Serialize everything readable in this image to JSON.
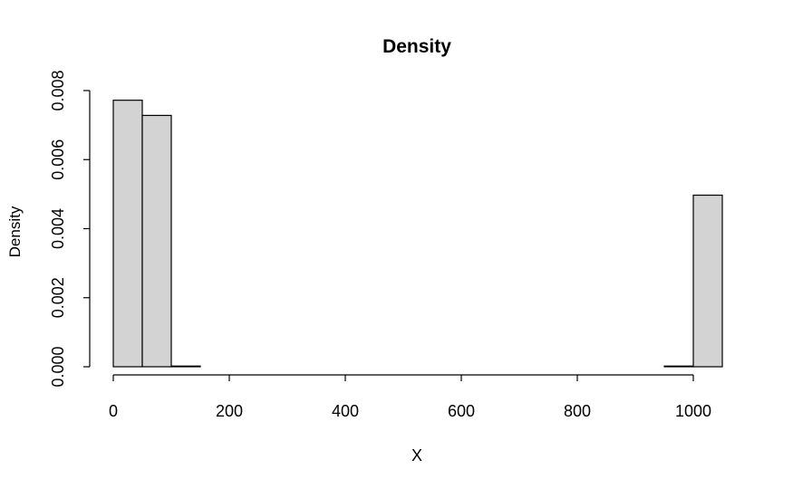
{
  "chart_data": {
    "type": "bar",
    "title": "Density",
    "xlabel": "X",
    "ylabel": "Density",
    "bin_edges": [
      0,
      50,
      100,
      150,
      200,
      250,
      300,
      350,
      400,
      450,
      500,
      550,
      600,
      650,
      700,
      750,
      800,
      850,
      900,
      950,
      1000,
      1050
    ],
    "values": [
      0.00772,
      0.00728,
      2e-05,
      0,
      0,
      0,
      0,
      0,
      0,
      0,
      0,
      0,
      0,
      0,
      0,
      0,
      0,
      0,
      0,
      2e-05,
      0.00497
    ],
    "xticks": [
      0,
      200,
      400,
      600,
      800,
      1000
    ],
    "xtick_labels": [
      "0",
      "200",
      "400",
      "600",
      "800",
      "1000"
    ],
    "yticks": [
      0,
      0.002,
      0.004,
      0.006,
      0.008
    ],
    "ytick_labels": [
      "0.000",
      "0.002",
      "0.004",
      "0.006",
      "0.008"
    ],
    "xlim": [
      0,
      1050
    ],
    "ylim": [
      0,
      0.008
    ],
    "bar_color": "#d3d3d3",
    "grid": false
  }
}
